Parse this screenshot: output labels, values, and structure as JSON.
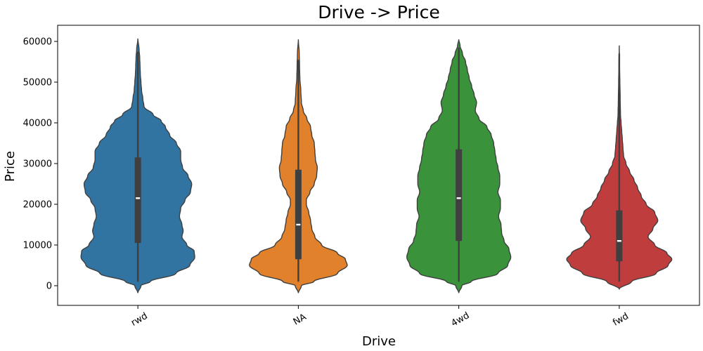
{
  "chart_data": {
    "type": "violin",
    "title": "Drive -> Price",
    "xlabel": "Drive",
    "ylabel": "Price",
    "ylim": [
      -5000,
      63000
    ],
    "yticks": [
      0,
      10000,
      20000,
      30000,
      40000,
      50000,
      60000
    ],
    "categories": [
      "rwd",
      "NA",
      "4wd",
      "fwd"
    ],
    "colors": [
      "#3274a1",
      "#e1812c",
      "#3a923a",
      "#c03d3e"
    ],
    "series": [
      {
        "category": "rwd",
        "whisker_low": 1000,
        "q1": 10500,
        "median": 21500,
        "q3": 31500,
        "whisker_high": 57500,
        "kde_range": [
          -1800,
          60700
        ],
        "density": [
          [
            -1800,
            0
          ],
          [
            0,
            0.05
          ],
          [
            1000,
            0.2
          ],
          [
            3000,
            0.62
          ],
          [
            5000,
            0.85
          ],
          [
            7000,
            0.93
          ],
          [
            8500,
            0.92
          ],
          [
            10000,
            0.8
          ],
          [
            12000,
            0.72
          ],
          [
            13500,
            0.74
          ],
          [
            15000,
            0.72
          ],
          [
            17000,
            0.68
          ],
          [
            19000,
            0.7
          ],
          [
            21000,
            0.77
          ],
          [
            23000,
            0.86
          ],
          [
            25000,
            0.88
          ],
          [
            27000,
            0.82
          ],
          [
            29000,
            0.73
          ],
          [
            31000,
            0.7
          ],
          [
            33000,
            0.7
          ],
          [
            35000,
            0.63
          ],
          [
            37000,
            0.52
          ],
          [
            39000,
            0.45
          ],
          [
            40500,
            0.38
          ],
          [
            42000,
            0.25
          ],
          [
            44000,
            0.1
          ],
          [
            46000,
            0.08
          ],
          [
            48000,
            0.06
          ],
          [
            50000,
            0.05
          ],
          [
            52000,
            0.04
          ],
          [
            54000,
            0.035
          ],
          [
            56000,
            0.03
          ],
          [
            58000,
            0.02
          ],
          [
            60700,
            0
          ]
        ]
      },
      {
        "category": "NA",
        "whisker_low": 1000,
        "q1": 6500,
        "median": 15000,
        "q3": 28500,
        "whisker_high": 55500,
        "kde_range": [
          -1800,
          60500
        ],
        "density": [
          [
            -1800,
            0
          ],
          [
            0,
            0.05
          ],
          [
            1000,
            0.25
          ],
          [
            3000,
            0.64
          ],
          [
            5000,
            0.8
          ],
          [
            6500,
            0.77
          ],
          [
            8000,
            0.64
          ],
          [
            10000,
            0.38
          ],
          [
            12000,
            0.27
          ],
          [
            14000,
            0.22
          ],
          [
            16000,
            0.2
          ],
          [
            18000,
            0.17
          ],
          [
            20000,
            0.13
          ],
          [
            21000,
            0.13
          ],
          [
            23000,
            0.19
          ],
          [
            25000,
            0.26
          ],
          [
            27000,
            0.3
          ],
          [
            29000,
            0.31
          ],
          [
            31000,
            0.28
          ],
          [
            33000,
            0.27
          ],
          [
            35000,
            0.26
          ],
          [
            37000,
            0.22
          ],
          [
            39000,
            0.2
          ],
          [
            41000,
            0.14
          ],
          [
            43000,
            0.08
          ],
          [
            45000,
            0.05
          ],
          [
            48000,
            0.04
          ],
          [
            51000,
            0.025
          ],
          [
            54000,
            0.02
          ],
          [
            57000,
            0.015
          ],
          [
            60500,
            0
          ]
        ]
      },
      {
        "category": "4wd",
        "whisker_low": 1000,
        "q1": 11000,
        "median": 21500,
        "q3": 33500,
        "whisker_high": 58500,
        "kde_range": [
          -1800,
          60500
        ],
        "density": [
          [
            -1800,
            0
          ],
          [
            0,
            0.05
          ],
          [
            1000,
            0.2
          ],
          [
            3000,
            0.64
          ],
          [
            5000,
            0.8
          ],
          [
            7000,
            0.85
          ],
          [
            9000,
            0.82
          ],
          [
            11000,
            0.74
          ],
          [
            13000,
            0.7
          ],
          [
            15000,
            0.69
          ],
          [
            17000,
            0.65
          ],
          [
            19000,
            0.68
          ],
          [
            21000,
            0.68
          ],
          [
            23000,
            0.64
          ],
          [
            25000,
            0.67
          ],
          [
            27000,
            0.67
          ],
          [
            29000,
            0.64
          ],
          [
            31000,
            0.61
          ],
          [
            33000,
            0.59
          ],
          [
            35000,
            0.57
          ],
          [
            37000,
            0.53
          ],
          [
            39000,
            0.46
          ],
          [
            41000,
            0.33
          ],
          [
            43000,
            0.27
          ],
          [
            45000,
            0.29
          ],
          [
            47000,
            0.25
          ],
          [
            49000,
            0.21
          ],
          [
            51000,
            0.17
          ],
          [
            53000,
            0.14
          ],
          [
            55000,
            0.11
          ],
          [
            57000,
            0.06
          ],
          [
            59000,
            0.02
          ],
          [
            60500,
            0
          ]
        ]
      },
      {
        "category": "fwd",
        "whisker_low": 1000,
        "q1": 6000,
        "median": 11000,
        "q3": 18500,
        "whisker_high": 57000,
        "kde_range": [
          -800,
          59000
        ],
        "density": [
          [
            -800,
            0
          ],
          [
            1000,
            0.2
          ],
          [
            3000,
            0.6
          ],
          [
            5000,
            0.8
          ],
          [
            6500,
            0.86
          ],
          [
            8000,
            0.78
          ],
          [
            10000,
            0.58
          ],
          [
            12000,
            0.47
          ],
          [
            14000,
            0.55
          ],
          [
            16000,
            0.63
          ],
          [
            18000,
            0.58
          ],
          [
            20000,
            0.44
          ],
          [
            22000,
            0.36
          ],
          [
            24000,
            0.3
          ],
          [
            26000,
            0.24
          ],
          [
            28000,
            0.17
          ],
          [
            30000,
            0.11
          ],
          [
            32000,
            0.07
          ],
          [
            34000,
            0.06
          ],
          [
            36000,
            0.05
          ],
          [
            38000,
            0.04
          ],
          [
            40000,
            0.03
          ],
          [
            42000,
            0.02
          ],
          [
            46000,
            0.015
          ],
          [
            50000,
            0.01
          ],
          [
            54000,
            0.005
          ],
          [
            59000,
            0
          ]
        ]
      }
    ]
  }
}
